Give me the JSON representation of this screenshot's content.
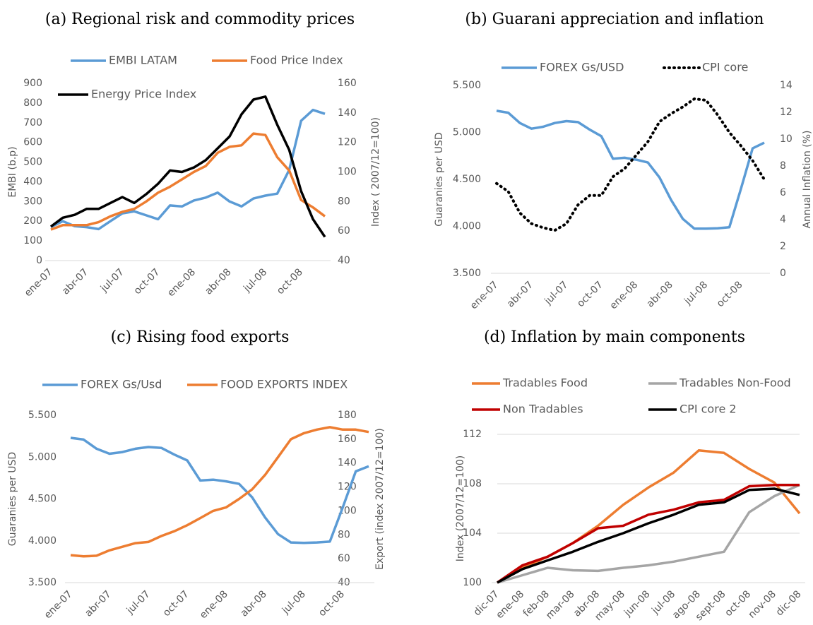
{
  "chart_data": [
    {
      "type": "line",
      "title": "(a) Regional risk and commodity prices",
      "categories": [
        "ene-07",
        null,
        null,
        "abr-07",
        null,
        null,
        "jul-07",
        null,
        null,
        "oct-07",
        null,
        null,
        "ene-08",
        null,
        null,
        "abr-08",
        null,
        null,
        "jul-08",
        null,
        null,
        "oct-08",
        null,
        null
      ],
      "ylabel": "EMBI (b.p)",
      "y2label": "Index ( 2007/12=100)",
      "ylim": [
        0,
        900
      ],
      "yticks": [
        0,
        100,
        200,
        300,
        400,
        500,
        600,
        700,
        800,
        900
      ],
      "y2lim": [
        40,
        160
      ],
      "y2ticks": [
        40,
        60,
        80,
        100,
        120,
        140,
        160
      ],
      "grid": false,
      "legend": "top",
      "series": [
        {
          "name": "EMBI LATAM",
          "color": "#5b9bd5",
          "values": [
            170,
            200,
            175,
            170,
            160,
            200,
            240,
            250,
            230,
            210,
            280,
            275,
            305,
            320,
            345,
            300,
            275,
            315,
            330,
            340,
            460,
            710,
            765,
            745
          ]
        },
        {
          "name": "Food Price Index",
          "color": "#ed7d31",
          "axis": "y2",
          "values": [
            61,
            64,
            64,
            64,
            66,
            70,
            73,
            75,
            80,
            86,
            90,
            95,
            100,
            104,
            113,
            117,
            118,
            126,
            125,
            110,
            101,
            81,
            76,
            70
          ]
        },
        {
          "name": "Energy Price Index",
          "color": "#000000",
          "axis": "y2",
          "values": [
            63,
            69,
            71,
            75,
            75,
            79,
            83,
            79,
            85,
            92,
            101,
            100,
            103,
            108,
            116,
            124,
            139,
            149,
            151,
            132,
            115,
            87,
            68,
            56
          ]
        }
      ]
    },
    {
      "type": "line",
      "title": "(b) Guarani appreciation and inflation",
      "categories": [
        "ene-07",
        null,
        null,
        "abr-07",
        null,
        null,
        "jul-07",
        null,
        null,
        "oct-07",
        null,
        null,
        "ene-08",
        null,
        null,
        "abr-08",
        null,
        null,
        "jul-08",
        null,
        null,
        "oct-08",
        null,
        null
      ],
      "ylabel": "Guaranies per USD",
      "y2label": "Annual Inflation (%)",
      "ylim": [
        3500,
        5500
      ],
      "yticks": [
        {
          "value": 3500,
          "label": "3.500"
        },
        {
          "value": 4000,
          "label": "4.000"
        },
        {
          "value": 4500,
          "label": "4.500"
        },
        {
          "value": 5000,
          "label": "5.000"
        },
        {
          "value": 5500,
          "label": "5.500"
        }
      ],
      "y2lim": [
        0,
        14
      ],
      "y2ticks": [
        0,
        2,
        4,
        6,
        8,
        10,
        12,
        14
      ],
      "grid": false,
      "legend": "top",
      "series": [
        {
          "name": "FOREX Gs/USD",
          "color": "#5b9bd5",
          "values": [
            5230,
            5210,
            5100,
            5040,
            5060,
            5100,
            5120,
            5110,
            5030,
            4960,
            4720,
            4730,
            4710,
            4680,
            4520,
            4280,
            4080,
            3975,
            3975,
            3980,
            3990,
            4400,
            4830,
            4890
          ]
        },
        {
          "name": "CPI core",
          "color": "#000000",
          "axis": "y2",
          "dash": "dotted",
          "values": [
            6.7,
            6.1,
            4.5,
            3.7,
            3.4,
            3.2,
            3.7,
            5.1,
            5.8,
            5.8,
            7.2,
            7.8,
            8.8,
            9.8,
            11.3,
            11.9,
            12.4,
            13.0,
            12.9,
            11.8,
            10.5,
            9.5,
            8.4,
            7.0
          ]
        }
      ]
    },
    {
      "type": "line",
      "title": "(c) Rising food exports",
      "categories": [
        "ene-07",
        null,
        null,
        "abr-07",
        null,
        null,
        "jul-07",
        null,
        null,
        "oct-07",
        null,
        null,
        "ene-08",
        null,
        null,
        "abr-08",
        null,
        null,
        "jul-08",
        null,
        null,
        "oct-08",
        null,
        null
      ],
      "ylabel": "Guaranies per USD",
      "y2label": "Export (index 2007/12=100)",
      "ylim": [
        3500,
        5500
      ],
      "yticks": [
        {
          "value": 3500,
          "label": "3.500"
        },
        {
          "value": 4000,
          "label": "4.000"
        },
        {
          "value": 4500,
          "label": "4.500"
        },
        {
          "value": 5000,
          "label": "5.000"
        },
        {
          "value": 5500,
          "label": "5.500"
        }
      ],
      "y2lim": [
        40,
        180
      ],
      "y2ticks": [
        40,
        60,
        80,
        100,
        120,
        140,
        160,
        180
      ],
      "grid": false,
      "legend": "top",
      "series": [
        {
          "name": "FOREX Gs/Usd",
          "color": "#5b9bd5",
          "values": [
            5230,
            5210,
            5100,
            5040,
            5060,
            5100,
            5120,
            5110,
            5030,
            4960,
            4720,
            4730,
            4710,
            4680,
            4520,
            4280,
            4080,
            3980,
            3975,
            3980,
            3990,
            4400,
            4830,
            4890
          ]
        },
        {
          "name": "FOOD EXPORTS INDEX",
          "color": "#ed7d31",
          "axis": "y2",
          "values": [
            63,
            62,
            62.5,
            67,
            70,
            73,
            74,
            79,
            83,
            88,
            94,
            100,
            103,
            110,
            118,
            130,
            145,
            160,
            165,
            168,
            170,
            168,
            168,
            166
          ]
        }
      ]
    },
    {
      "type": "line",
      "title": "(d) Inflation by main components",
      "categories": [
        "dic-07",
        "ene-08",
        "feb-08",
        "mar-08",
        "abr-08",
        "may-08",
        "jun-08",
        "jul-08",
        "ago-08",
        "sept-08",
        "oct-08",
        "nov-08",
        "dic-08"
      ],
      "ylabel": "Index (2007/12=100)",
      "ylim": [
        100,
        112
      ],
      "yticks": [
        100,
        104,
        108,
        112
      ],
      "grid": true,
      "legend": "top",
      "series": [
        {
          "name": "Tradables Food",
          "color": "#ed7d31",
          "values": [
            100,
            101.2,
            102.1,
            103.2,
            104.6,
            106.3,
            107.7,
            108.9,
            110.7,
            110.5,
            109.2,
            108.1,
            105.6
          ]
        },
        {
          "name": "Tradables Non-Food",
          "color": "#a5a5a5",
          "values": [
            100,
            100.6,
            101.2,
            101.0,
            100.95,
            101.2,
            101.4,
            101.7,
            102.1,
            102.5,
            105.7,
            107.0,
            107.9
          ]
        },
        {
          "name": "Non Tradables",
          "color": "#c00000",
          "values": [
            100,
            101.4,
            102.1,
            103.2,
            104.4,
            104.6,
            105.5,
            105.9,
            106.5,
            106.7,
            107.8,
            107.9,
            107.9
          ]
        },
        {
          "name": "CPI core 2",
          "color": "#000000",
          "values": [
            100,
            101.1,
            101.8,
            102.5,
            103.3,
            104.0,
            104.8,
            105.5,
            106.3,
            106.5,
            107.5,
            107.6,
            107.1
          ]
        }
      ]
    }
  ]
}
